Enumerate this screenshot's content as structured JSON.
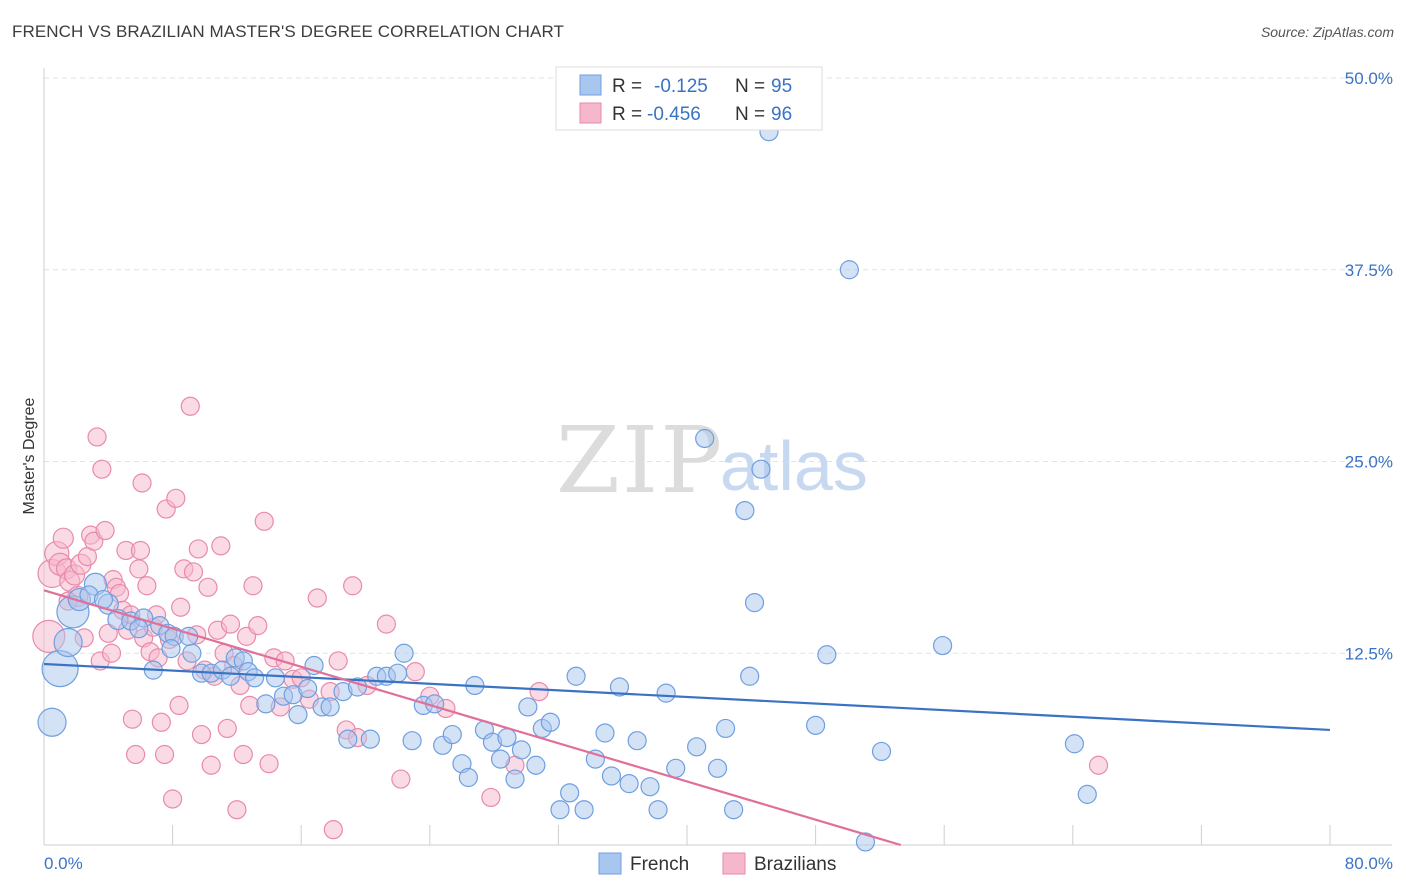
{
  "title": "FRENCH VS BRAZILIAN MASTER'S DEGREE CORRELATION CHART",
  "source": "Source: ZipAtlas.com",
  "watermark": {
    "zip": "ZIP",
    "atlas": "atlas"
  },
  "colors": {
    "french": "#3a73c4",
    "french_fill": "#a9c6ee",
    "brazilians": "#e0709a",
    "brazilians_fill": "#f5b8cb",
    "grid": "#e2e2e2",
    "tick_label": "#3a73c4"
  },
  "legend": {
    "rows": [
      {
        "r_label": "R =",
        "r_value": "-0.125",
        "n_label": "N =",
        "n_value": "95"
      },
      {
        "r_label": "R =",
        "r_value": "-0.456",
        "n_label": "N =",
        "n_value": "96"
      }
    ]
  },
  "chart_data": {
    "type": "scatter",
    "title": "FRENCH VS BRAZILIAN MASTER'S DEGREE CORRELATION CHART",
    "xlabel": "",
    "ylabel": "Master's Degree",
    "xlim": [
      0,
      80
    ],
    "ylim": [
      0,
      50
    ],
    "x_tick_labels": [
      "0.0%",
      "80.0%"
    ],
    "y_ticks": [
      12.5,
      25.0,
      37.5,
      50.0
    ],
    "y_tick_labels": [
      "12.5%",
      "25.0%",
      "37.5%",
      "50.0%"
    ],
    "grid": true,
    "legend_position": "top-center",
    "series": [
      {
        "name": "French",
        "r": -0.125,
        "n": 95,
        "trend": {
          "x": [
            0,
            80
          ],
          "y": [
            11.8,
            7.5
          ]
        },
        "points": [
          [
            1.0,
            11.5,
            18
          ],
          [
            1.8,
            15.2,
            16
          ],
          [
            1.5,
            13.2,
            14
          ],
          [
            0.5,
            8.0,
            14
          ],
          [
            2.2,
            16.0,
            11
          ],
          [
            3.2,
            17.0,
            11
          ],
          [
            2.8,
            16.3,
            9
          ],
          [
            4.0,
            15.7,
            10
          ],
          [
            4.6,
            14.7,
            10
          ],
          [
            5.4,
            14.6,
            9
          ],
          [
            6.2,
            14.8,
            9
          ],
          [
            6.8,
            11.4,
            9
          ],
          [
            7.2,
            14.3,
            9
          ],
          [
            7.7,
            13.8,
            9
          ],
          [
            8.1,
            13.6,
            9
          ],
          [
            9.2,
            12.5,
            9
          ],
          [
            9.8,
            11.2,
            9
          ],
          [
            10.4,
            11.2,
            9
          ],
          [
            11.1,
            11.4,
            9
          ],
          [
            11.6,
            11.0,
            9
          ],
          [
            11.9,
            12.2,
            9
          ],
          [
            12.4,
            12.0,
            9
          ],
          [
            12.7,
            11.3,
            9
          ],
          [
            13.1,
            10.9,
            9
          ],
          [
            13.8,
            9.2,
            9
          ],
          [
            14.4,
            10.9,
            9
          ],
          [
            14.9,
            9.7,
            9
          ],
          [
            15.5,
            9.8,
            9
          ],
          [
            15.8,
            8.5,
            9
          ],
          [
            16.4,
            10.2,
            9
          ],
          [
            16.8,
            11.7,
            9
          ],
          [
            17.3,
            9.0,
            9
          ],
          [
            17.8,
            9.0,
            9
          ],
          [
            18.6,
            10.0,
            9
          ],
          [
            18.9,
            6.9,
            9
          ],
          [
            19.5,
            10.3,
            9
          ],
          [
            20.3,
            6.9,
            9
          ],
          [
            20.7,
            11.0,
            9
          ],
          [
            21.3,
            11.0,
            9
          ],
          [
            22.0,
            11.2,
            9
          ],
          [
            22.4,
            12.5,
            9
          ],
          [
            22.9,
            6.8,
            9
          ],
          [
            23.6,
            9.1,
            9
          ],
          [
            24.3,
            9.2,
            9
          ],
          [
            24.8,
            6.5,
            9
          ],
          [
            25.4,
            7.2,
            9
          ],
          [
            26.0,
            5.3,
            9
          ],
          [
            26.4,
            4.4,
            9
          ],
          [
            26.8,
            10.4,
            9
          ],
          [
            27.4,
            7.5,
            9
          ],
          [
            27.9,
            6.7,
            9
          ],
          [
            28.4,
            5.6,
            9
          ],
          [
            28.8,
            7.0,
            9
          ],
          [
            29.3,
            4.3,
            9
          ],
          [
            29.7,
            6.2,
            9
          ],
          [
            30.1,
            9.0,
            9
          ],
          [
            30.6,
            5.2,
            9
          ],
          [
            31.0,
            7.6,
            9
          ],
          [
            31.5,
            8.0,
            9
          ],
          [
            32.1,
            2.3,
            9
          ],
          [
            32.7,
            3.4,
            9
          ],
          [
            33.1,
            11.0,
            9
          ],
          [
            33.6,
            2.3,
            9
          ],
          [
            34.3,
            5.6,
            9
          ],
          [
            34.9,
            7.3,
            9
          ],
          [
            35.3,
            4.5,
            9
          ],
          [
            35.8,
            10.3,
            9
          ],
          [
            36.4,
            4.0,
            9
          ],
          [
            36.9,
            6.8,
            9
          ],
          [
            37.7,
            3.8,
            9
          ],
          [
            38.2,
            2.3,
            9
          ],
          [
            38.7,
            9.9,
            9
          ],
          [
            39.3,
            5.0,
            9
          ],
          [
            40.6,
            6.4,
            9
          ],
          [
            41.1,
            26.5,
            9
          ],
          [
            41.9,
            5.0,
            9
          ],
          [
            42.4,
            7.6,
            9
          ],
          [
            42.9,
            2.3,
            9
          ],
          [
            43.6,
            21.8,
            9
          ],
          [
            43.9,
            11.0,
            9
          ],
          [
            44.2,
            15.8,
            9
          ],
          [
            44.6,
            24.5,
            9
          ],
          [
            45.1,
            46.5,
            9
          ],
          [
            48.0,
            7.8,
            9
          ],
          [
            48.7,
            12.4,
            9
          ],
          [
            50.1,
            37.5,
            9
          ],
          [
            51.1,
            0.2,
            9
          ],
          [
            52.1,
            6.1,
            9
          ],
          [
            55.9,
            13.0,
            9
          ],
          [
            64.1,
            6.6,
            9
          ],
          [
            64.9,
            3.3,
            9
          ],
          [
            9.0,
            13.6,
            9
          ],
          [
            7.9,
            12.8,
            9
          ],
          [
            5.9,
            14.1,
            9
          ],
          [
            3.7,
            16.0,
            9
          ]
        ]
      },
      {
        "name": "Brazilians",
        "r": -0.456,
        "n": 96,
        "trend": {
          "x": [
            0,
            53.3
          ],
          "y": [
            16.6,
            0
          ]
        },
        "points": [
          [
            0.3,
            13.6,
            16
          ],
          [
            0.5,
            17.7,
            14
          ],
          [
            0.8,
            19.0,
            12
          ],
          [
            1.0,
            18.3,
            11
          ],
          [
            1.2,
            20.0,
            10
          ],
          [
            1.4,
            18.0,
            10
          ],
          [
            1.6,
            17.2,
            10
          ],
          [
            1.9,
            17.6,
            10
          ],
          [
            2.1,
            16.2,
            10
          ],
          [
            2.3,
            18.3,
            10
          ],
          [
            2.5,
            13.5,
            9
          ],
          [
            2.7,
            18.8,
            9
          ],
          [
            2.9,
            20.2,
            9
          ],
          [
            3.1,
            19.8,
            9
          ],
          [
            3.3,
            26.6,
            9
          ],
          [
            3.5,
            12.0,
            9
          ],
          [
            3.6,
            24.5,
            9
          ],
          [
            3.8,
            20.5,
            9
          ],
          [
            4.0,
            13.8,
            9
          ],
          [
            4.2,
            12.5,
            9
          ],
          [
            4.3,
            17.3,
            9
          ],
          [
            4.5,
            16.8,
            9
          ],
          [
            4.7,
            16.4,
            9
          ],
          [
            4.9,
            15.3,
            9
          ],
          [
            5.1,
            19.2,
            9
          ],
          [
            5.2,
            14.0,
            9
          ],
          [
            5.4,
            15.0,
            9
          ],
          [
            5.5,
            8.2,
            9
          ],
          [
            5.7,
            5.9,
            9
          ],
          [
            5.9,
            18.0,
            9
          ],
          [
            6.1,
            23.6,
            9
          ],
          [
            6.2,
            13.5,
            9
          ],
          [
            6.4,
            16.9,
            9
          ],
          [
            6.6,
            12.6,
            9
          ],
          [
            6.8,
            14.2,
            9
          ],
          [
            7.0,
            15.0,
            9
          ],
          [
            7.1,
            12.2,
            9
          ],
          [
            7.3,
            8.0,
            9
          ],
          [
            7.5,
            5.9,
            9
          ],
          [
            7.6,
            21.9,
            9
          ],
          [
            7.8,
            13.4,
            9
          ],
          [
            8.0,
            3.0,
            9
          ],
          [
            8.2,
            22.6,
            9
          ],
          [
            8.4,
            9.1,
            9
          ],
          [
            8.5,
            15.5,
            9
          ],
          [
            8.7,
            18.0,
            9
          ],
          [
            8.9,
            12.0,
            9
          ],
          [
            9.1,
            28.6,
            9
          ],
          [
            9.3,
            17.8,
            9
          ],
          [
            9.5,
            13.7,
            9
          ],
          [
            9.6,
            19.3,
            9
          ],
          [
            9.8,
            7.2,
            9
          ],
          [
            10.0,
            11.4,
            9
          ],
          [
            10.2,
            16.8,
            9
          ],
          [
            10.4,
            5.2,
            9
          ],
          [
            10.6,
            11.0,
            9
          ],
          [
            10.8,
            14.0,
            9
          ],
          [
            11.0,
            19.5,
            9
          ],
          [
            11.2,
            12.5,
            9
          ],
          [
            11.4,
            7.6,
            9
          ],
          [
            11.6,
            14.4,
            9
          ],
          [
            11.8,
            11.7,
            9
          ],
          [
            12.0,
            2.3,
            9
          ],
          [
            12.2,
            10.4,
            9
          ],
          [
            12.4,
            5.9,
            9
          ],
          [
            12.6,
            13.6,
            9
          ],
          [
            12.8,
            9.1,
            9
          ],
          [
            13.0,
            16.9,
            9
          ],
          [
            13.3,
            14.3,
            9
          ],
          [
            13.7,
            21.1,
            9
          ],
          [
            14.0,
            5.3,
            9
          ],
          [
            14.3,
            12.2,
            9
          ],
          [
            14.7,
            9.0,
            9
          ],
          [
            15.0,
            12.0,
            9
          ],
          [
            15.5,
            10.8,
            9
          ],
          [
            16.0,
            10.9,
            9
          ],
          [
            16.5,
            9.5,
            9
          ],
          [
            17.0,
            16.1,
            9
          ],
          [
            17.8,
            10.0,
            9
          ],
          [
            18.3,
            12.0,
            9
          ],
          [
            18.8,
            7.5,
            9
          ],
          [
            19.2,
            16.9,
            9
          ],
          [
            20.1,
            10.4,
            9
          ],
          [
            21.3,
            14.4,
            9
          ],
          [
            22.2,
            4.3,
            9
          ],
          [
            23.1,
            11.3,
            9
          ],
          [
            24.0,
            9.7,
            9
          ],
          [
            25.0,
            8.9,
            9
          ],
          [
            27.8,
            3.1,
            9
          ],
          [
            29.3,
            5.2,
            9
          ],
          [
            30.8,
            10.0,
            9
          ],
          [
            18.0,
            1.0,
            9
          ],
          [
            19.5,
            7.0,
            9
          ],
          [
            65.6,
            5.2,
            9
          ],
          [
            6.0,
            19.2,
            9
          ],
          [
            1.5,
            15.9,
            9
          ]
        ]
      }
    ]
  },
  "bottom_legend": {
    "items": [
      "French",
      "Brazilians"
    ]
  }
}
